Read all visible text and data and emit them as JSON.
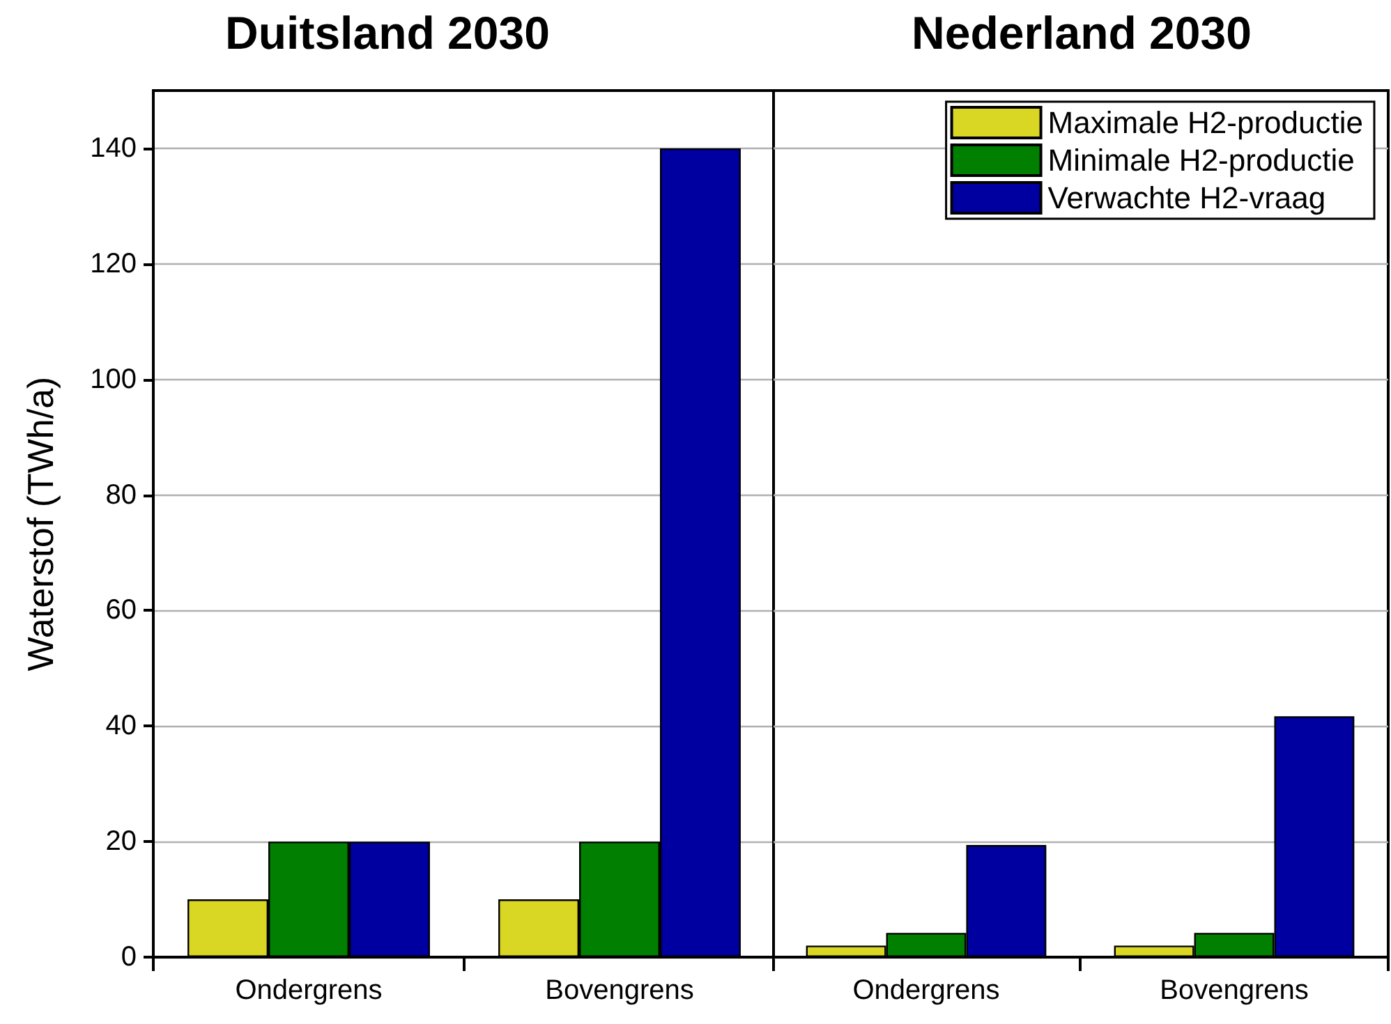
{
  "chart_data": [
    {
      "type": "bar",
      "title": "Duitsland 2030",
      "ylabel": "Waterstof (TWh/a)",
      "categories": [
        "Ondergrens",
        "Bovengrens"
      ],
      "series": [
        {
          "color": "#dad624",
          "values": [
            10,
            10
          ]
        },
        {
          "color": "#007f00",
          "values": [
            20,
            20
          ]
        },
        {
          "color": "#0000a0",
          "values": [
            20,
            140
          ]
        }
      ],
      "ylim": [
        0,
        150
      ],
      "yticks": [
        0,
        20,
        40,
        60,
        80,
        100,
        120,
        140
      ],
      "grid": "y",
      "legend": false
    },
    {
      "type": "bar",
      "title": "Nederland 2030",
      "categories": [
        "Ondergrens",
        "Bovengrens"
      ],
      "series": [
        {
          "name": "Maximale H2-productie",
          "color": "#dad624",
          "values": [
            2,
            2
          ]
        },
        {
          "name": "Minimale H2-productie",
          "color": "#007f00",
          "values": [
            4.2,
            4.2
          ]
        },
        {
          "name": "Verwachte H2-vraag",
          "color": "#0000a0",
          "values": [
            19.4,
            41.7
          ]
        }
      ],
      "ylim": [
        0,
        150
      ],
      "yticks": [
        0,
        20,
        40,
        60,
        80,
        100,
        120,
        140
      ],
      "grid": "y",
      "legend": "top right",
      "tick_labels": "x"
    }
  ]
}
